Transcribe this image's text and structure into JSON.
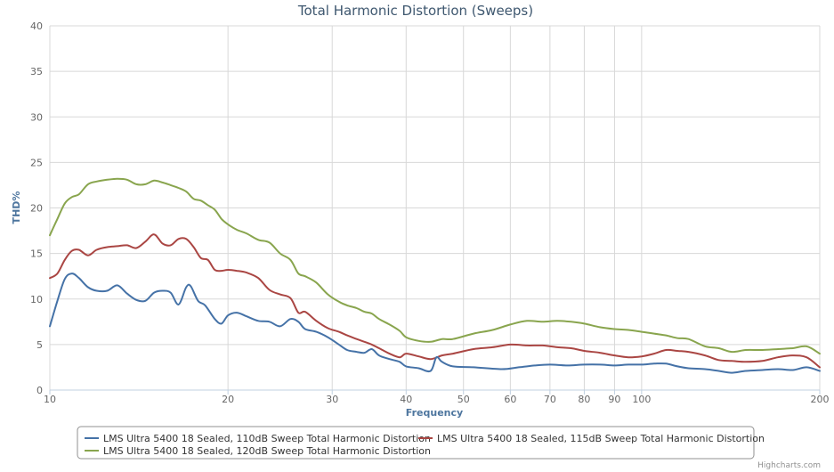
{
  "credits": "Highcharts.com",
  "colors": {
    "grid": "#d8d8d8",
    "axis_title": "#4d759e",
    "tick_label": "#666666",
    "title": "#3e576f",
    "legend_border": "#909090"
  },
  "chart_data": {
    "type": "line",
    "title": "Total Harmonic Distortion (Sweeps)",
    "xlabel": "Frequency",
    "ylabel": "THD%",
    "xscale": "log",
    "xlim": [
      10,
      200
    ],
    "ylim": [
      0,
      40
    ],
    "grid": true,
    "legend_position": "bottom",
    "xticks": [
      10,
      20,
      30,
      40,
      50,
      60,
      70,
      80,
      90,
      100,
      200
    ],
    "yticks": [
      0,
      5,
      10,
      15,
      20,
      25,
      30,
      35,
      40
    ],
    "series": [
      {
        "name": "LMS Ultra 5400 18 Sealed, 110dB Sweep Total Harmonic Distortion",
        "color": "#4572a7",
        "points": [
          [
            10,
            7
          ],
          [
            10.3,
            9.8
          ],
          [
            10.6,
            12.2
          ],
          [
            10.9,
            12.8
          ],
          [
            11.2,
            12.3
          ],
          [
            11.6,
            11.3
          ],
          [
            12,
            10.9
          ],
          [
            12.5,
            10.9
          ],
          [
            13,
            11.5
          ],
          [
            13.5,
            10.6
          ],
          [
            14,
            9.9
          ],
          [
            14.5,
            9.8
          ],
          [
            15,
            10.7
          ],
          [
            15.5,
            10.9
          ],
          [
            16,
            10.7
          ],
          [
            16.5,
            9.4
          ],
          [
            17,
            11.3
          ],
          [
            17.3,
            11.4
          ],
          [
            17.8,
            9.8
          ],
          [
            18.3,
            9.3
          ],
          [
            19,
            7.8
          ],
          [
            19.5,
            7.3
          ],
          [
            20,
            8.2
          ],
          [
            20.7,
            8.5
          ],
          [
            21.5,
            8.1
          ],
          [
            22.5,
            7.6
          ],
          [
            23.5,
            7.5
          ],
          [
            24.5,
            7
          ],
          [
            25.5,
            7.8
          ],
          [
            26.3,
            7.5
          ],
          [
            27,
            6.7
          ],
          [
            28.2,
            6.4
          ],
          [
            29.5,
            5.8
          ],
          [
            30.8,
            5
          ],
          [
            31.8,
            4.4
          ],
          [
            33,
            4.2
          ],
          [
            34,
            4.1
          ],
          [
            35,
            4.5
          ],
          [
            36,
            3.8
          ],
          [
            37.5,
            3.4
          ],
          [
            39,
            3.1
          ],
          [
            40,
            2.6
          ],
          [
            42,
            2.4
          ],
          [
            44,
            2.1
          ],
          [
            45,
            3.6
          ],
          [
            46,
            3.1
          ],
          [
            48,
            2.6
          ],
          [
            52,
            2.5
          ],
          [
            58,
            2.3
          ],
          [
            62,
            2.5
          ],
          [
            66,
            2.7
          ],
          [
            70,
            2.8
          ],
          [
            75,
            2.7
          ],
          [
            80,
            2.8
          ],
          [
            85,
            2.8
          ],
          [
            90,
            2.7
          ],
          [
            95,
            2.8
          ],
          [
            100,
            2.8
          ],
          [
            105,
            2.9
          ],
          [
            110,
            2.9
          ],
          [
            115,
            2.6
          ],
          [
            120,
            2.4
          ],
          [
            128,
            2.3
          ],
          [
            135,
            2.1
          ],
          [
            142,
            1.9
          ],
          [
            150,
            2.1
          ],
          [
            160,
            2.2
          ],
          [
            170,
            2.3
          ],
          [
            180,
            2.2
          ],
          [
            190,
            2.5
          ],
          [
            200,
            2.1
          ]
        ]
      },
      {
        "name": "LMS Ultra 5400 18 Sealed, 115dB Sweep Total Harmonic Distortion",
        "color": "#aa4643",
        "points": [
          [
            10,
            12.3
          ],
          [
            10.3,
            12.8
          ],
          [
            10.6,
            14.3
          ],
          [
            10.9,
            15.3
          ],
          [
            11.2,
            15.4
          ],
          [
            11.6,
            14.8
          ],
          [
            12,
            15.4
          ],
          [
            12.5,
            15.7
          ],
          [
            13,
            15.8
          ],
          [
            13.5,
            15.9
          ],
          [
            14,
            15.6
          ],
          [
            14.5,
            16.3
          ],
          [
            15,
            17.1
          ],
          [
            15.5,
            16.1
          ],
          [
            16,
            15.9
          ],
          [
            16.5,
            16.6
          ],
          [
            17,
            16.6
          ],
          [
            17.5,
            15.7
          ],
          [
            18,
            14.5
          ],
          [
            18.5,
            14.3
          ],
          [
            19,
            13.2
          ],
          [
            19.5,
            13.1
          ],
          [
            20,
            13.2
          ],
          [
            20.7,
            13.1
          ],
          [
            21.5,
            12.9
          ],
          [
            22.5,
            12.3
          ],
          [
            23.5,
            11
          ],
          [
            24.5,
            10.5
          ],
          [
            25.5,
            10.1
          ],
          [
            26.3,
            8.5
          ],
          [
            27,
            8.6
          ],
          [
            28.2,
            7.6
          ],
          [
            29.5,
            6.8
          ],
          [
            30.8,
            6.4
          ],
          [
            31.8,
            6
          ],
          [
            33,
            5.6
          ],
          [
            34,
            5.3
          ],
          [
            35,
            5
          ],
          [
            36,
            4.6
          ],
          [
            37.5,
            4
          ],
          [
            39,
            3.6
          ],
          [
            40,
            4
          ],
          [
            42,
            3.7
          ],
          [
            44,
            3.4
          ],
          [
            46,
            3.8
          ],
          [
            48,
            4
          ],
          [
            52,
            4.5
          ],
          [
            56,
            4.7
          ],
          [
            60,
            5
          ],
          [
            64,
            4.9
          ],
          [
            68,
            4.9
          ],
          [
            72,
            4.7
          ],
          [
            76,
            4.6
          ],
          [
            80,
            4.3
          ],
          [
            85,
            4.1
          ],
          [
            90,
            3.8
          ],
          [
            95,
            3.6
          ],
          [
            100,
            3.7
          ],
          [
            105,
            4
          ],
          [
            110,
            4.4
          ],
          [
            115,
            4.3
          ],
          [
            120,
            4.2
          ],
          [
            128,
            3.8
          ],
          [
            135,
            3.3
          ],
          [
            142,
            3.2
          ],
          [
            150,
            3.1
          ],
          [
            160,
            3.2
          ],
          [
            170,
            3.6
          ],
          [
            180,
            3.8
          ],
          [
            190,
            3.6
          ],
          [
            200,
            2.5
          ]
        ]
      },
      {
        "name": "LMS Ultra 5400 18 Sealed, 120dB Sweep Total Harmonic Distortion",
        "color": "#89a54e",
        "points": [
          [
            10,
            17
          ],
          [
            10.3,
            18.8
          ],
          [
            10.6,
            20.5
          ],
          [
            10.9,
            21.2
          ],
          [
            11.2,
            21.5
          ],
          [
            11.6,
            22.6
          ],
          [
            12,
            22.9
          ],
          [
            12.5,
            23.1
          ],
          [
            13,
            23.2
          ],
          [
            13.5,
            23.1
          ],
          [
            14,
            22.6
          ],
          [
            14.5,
            22.6
          ],
          [
            15,
            23
          ],
          [
            15.5,
            22.8
          ],
          [
            16,
            22.5
          ],
          [
            16.5,
            22.2
          ],
          [
            17,
            21.8
          ],
          [
            17.5,
            21
          ],
          [
            18,
            20.8
          ],
          [
            18.5,
            20.3
          ],
          [
            19,
            19.8
          ],
          [
            19.5,
            18.8
          ],
          [
            20,
            18.2
          ],
          [
            20.7,
            17.6
          ],
          [
            21.5,
            17.2
          ],
          [
            22.5,
            16.5
          ],
          [
            23.5,
            16.2
          ],
          [
            24.5,
            15
          ],
          [
            25.5,
            14.3
          ],
          [
            26.3,
            12.8
          ],
          [
            27,
            12.5
          ],
          [
            28.2,
            11.8
          ],
          [
            29.5,
            10.5
          ],
          [
            30.8,
            9.7
          ],
          [
            31.8,
            9.3
          ],
          [
            33,
            9
          ],
          [
            34,
            8.6
          ],
          [
            35,
            8.4
          ],
          [
            36,
            7.8
          ],
          [
            37.5,
            7.2
          ],
          [
            39,
            6.5
          ],
          [
            40,
            5.8
          ],
          [
            42,
            5.4
          ],
          [
            44,
            5.3
          ],
          [
            46,
            5.6
          ],
          [
            48,
            5.6
          ],
          [
            52,
            6.2
          ],
          [
            56,
            6.6
          ],
          [
            60,
            7.2
          ],
          [
            64,
            7.6
          ],
          [
            68,
            7.5
          ],
          [
            72,
            7.6
          ],
          [
            76,
            7.5
          ],
          [
            80,
            7.3
          ],
          [
            85,
            6.9
          ],
          [
            90,
            6.7
          ],
          [
            95,
            6.6
          ],
          [
            100,
            6.4
          ],
          [
            105,
            6.2
          ],
          [
            110,
            6
          ],
          [
            115,
            5.7
          ],
          [
            120,
            5.6
          ],
          [
            128,
            4.8
          ],
          [
            135,
            4.6
          ],
          [
            142,
            4.2
          ],
          [
            150,
            4.4
          ],
          [
            160,
            4.4
          ],
          [
            170,
            4.5
          ],
          [
            180,
            4.6
          ],
          [
            190,
            4.8
          ],
          [
            200,
            4
          ]
        ]
      }
    ]
  }
}
